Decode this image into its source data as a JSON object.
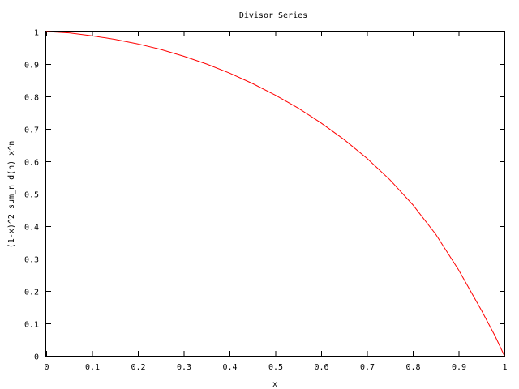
{
  "chart_data": {
    "type": "line",
    "title": "Divisor Series",
    "xlabel": "x",
    "ylabel": "(1-x)^2 sum_n d(n) x^n",
    "xlim": [
      0,
      1
    ],
    "ylim": [
      0,
      1
    ],
    "xticks": [
      "0",
      "0.1",
      "0.2",
      "0.3",
      "0.4",
      "0.5",
      "0.6",
      "0.7",
      "0.8",
      "0.9",
      "1"
    ],
    "yticks": [
      "0",
      "0.1",
      "0.2",
      "0.3",
      "0.4",
      "0.5",
      "0.6",
      "0.7",
      "0.8",
      "0.9",
      "1"
    ],
    "grid": false,
    "legend": "none",
    "series": [
      {
        "color": "#ff0000",
        "x": [
          0,
          0.05,
          0.1,
          0.15,
          0.2,
          0.25,
          0.3,
          0.35,
          0.4,
          0.45,
          0.5,
          0.55,
          0.6,
          0.65,
          0.7,
          0.75,
          0.8,
          0.85,
          0.9,
          0.95,
          0.98,
          1.0
        ],
        "y": [
          1.0,
          0.996,
          0.987,
          0.976,
          0.962,
          0.945,
          0.924,
          0.9,
          0.872,
          0.84,
          0.804,
          0.764,
          0.718,
          0.667,
          0.609,
          0.543,
          0.466,
          0.375,
          0.265,
          0.14,
          0.06,
          0.0
        ]
      }
    ]
  }
}
